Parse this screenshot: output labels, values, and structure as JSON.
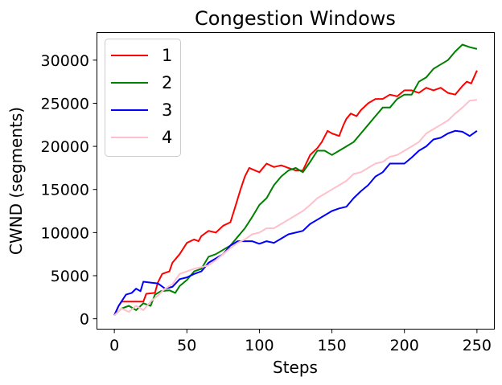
{
  "chart_data": {
    "type": "line",
    "title": "Congestion Windows",
    "xlabel": "Steps",
    "ylabel": "CWND (segments)",
    "xlim": [
      -12,
      262
    ],
    "ylim": [
      -1200,
      33200
    ],
    "xticks": [
      0,
      50,
      100,
      150,
      200,
      250
    ],
    "xtick_labels": [
      "0",
      "50",
      "100",
      "150",
      "200",
      "250"
    ],
    "yticks": [
      0,
      5000,
      10000,
      15000,
      20000,
      25000,
      30000
    ],
    "ytick_labels": [
      "0",
      "5000",
      "10000",
      "15000",
      "20000",
      "25000",
      "30000"
    ],
    "grid": false,
    "legend_position": "top-left",
    "series": [
      {
        "name": "1",
        "color": "#ff0000",
        "points": [
          [
            0,
            400
          ],
          [
            3,
            1500
          ],
          [
            5,
            2000
          ],
          [
            20,
            2000
          ],
          [
            22,
            2900
          ],
          [
            28,
            3000
          ],
          [
            30,
            4200
          ],
          [
            33,
            5200
          ],
          [
            38,
            5500
          ],
          [
            40,
            6500
          ],
          [
            45,
            7500
          ],
          [
            50,
            8800
          ],
          [
            55,
            9200
          ],
          [
            58,
            9000
          ],
          [
            60,
            9600
          ],
          [
            65,
            10200
          ],
          [
            70,
            10000
          ],
          [
            75,
            10800
          ],
          [
            80,
            11200
          ],
          [
            83,
            12800
          ],
          [
            87,
            15000
          ],
          [
            90,
            16500
          ],
          [
            93,
            17500
          ],
          [
            97,
            17200
          ],
          [
            100,
            17000
          ],
          [
            105,
            18000
          ],
          [
            110,
            17600
          ],
          [
            115,
            17800
          ],
          [
            120,
            17500
          ],
          [
            125,
            17200
          ],
          [
            130,
            17200
          ],
          [
            135,
            19000
          ],
          [
            140,
            19800
          ],
          [
            143,
            20500
          ],
          [
            147,
            21800
          ],
          [
            150,
            21500
          ],
          [
            155,
            21200
          ],
          [
            158,
            22500
          ],
          [
            160,
            23200
          ],
          [
            163,
            23800
          ],
          [
            167,
            23500
          ],
          [
            170,
            24200
          ],
          [
            175,
            25000
          ],
          [
            180,
            25500
          ],
          [
            185,
            25500
          ],
          [
            190,
            26000
          ],
          [
            195,
            25800
          ],
          [
            200,
            26500
          ],
          [
            205,
            26500
          ],
          [
            210,
            26200
          ],
          [
            215,
            26800
          ],
          [
            220,
            26500
          ],
          [
            225,
            26800
          ],
          [
            230,
            26200
          ],
          [
            235,
            26000
          ],
          [
            240,
            27000
          ],
          [
            243,
            27500
          ],
          [
            246,
            27300
          ],
          [
            250,
            28800
          ]
        ]
      },
      {
        "name": "2",
        "color": "#008000",
        "points": [
          [
            0,
            400
          ],
          [
            5,
            1200
          ],
          [
            10,
            1500
          ],
          [
            15,
            1000
          ],
          [
            20,
            1800
          ],
          [
            25,
            1500
          ],
          [
            28,
            2800
          ],
          [
            32,
            3200
          ],
          [
            38,
            3300
          ],
          [
            42,
            3000
          ],
          [
            45,
            3800
          ],
          [
            50,
            4500
          ],
          [
            55,
            5500
          ],
          [
            60,
            5800
          ],
          [
            65,
            7200
          ],
          [
            70,
            7500
          ],
          [
            75,
            8000
          ],
          [
            80,
            8500
          ],
          [
            85,
            9500
          ],
          [
            90,
            10500
          ],
          [
            95,
            11800
          ],
          [
            100,
            13200
          ],
          [
            105,
            14000
          ],
          [
            110,
            15500
          ],
          [
            115,
            16500
          ],
          [
            120,
            17200
          ],
          [
            125,
            17500
          ],
          [
            130,
            17000
          ],
          [
            135,
            18200
          ],
          [
            140,
            19500
          ],
          [
            145,
            19500
          ],
          [
            150,
            19000
          ],
          [
            155,
            19500
          ],
          [
            160,
            20000
          ],
          [
            165,
            20500
          ],
          [
            170,
            21500
          ],
          [
            175,
            22500
          ],
          [
            180,
            23500
          ],
          [
            185,
            24500
          ],
          [
            190,
            24500
          ],
          [
            195,
            25500
          ],
          [
            200,
            26000
          ],
          [
            205,
            26000
          ],
          [
            210,
            27500
          ],
          [
            215,
            28000
          ],
          [
            220,
            29000
          ],
          [
            225,
            29500
          ],
          [
            230,
            30000
          ],
          [
            235,
            31000
          ],
          [
            240,
            31800
          ],
          [
            245,
            31500
          ],
          [
            250,
            31300
          ]
        ]
      },
      {
        "name": "3",
        "color": "#0000ff",
        "points": [
          [
            0,
            400
          ],
          [
            3,
            1500
          ],
          [
            8,
            2800
          ],
          [
            12,
            3000
          ],
          [
            15,
            3500
          ],
          [
            18,
            3200
          ],
          [
            20,
            4300
          ],
          [
            25,
            4200
          ],
          [
            30,
            4100
          ],
          [
            35,
            3500
          ],
          [
            40,
            3700
          ],
          [
            45,
            4600
          ],
          [
            50,
            4800
          ],
          [
            55,
            5200
          ],
          [
            60,
            5500
          ],
          [
            65,
            6500
          ],
          [
            70,
            7000
          ],
          [
            75,
            7500
          ],
          [
            80,
            8500
          ],
          [
            85,
            9000
          ],
          [
            90,
            9000
          ],
          [
            95,
            9000
          ],
          [
            100,
            8700
          ],
          [
            105,
            9000
          ],
          [
            110,
            8800
          ],
          [
            115,
            9300
          ],
          [
            120,
            9800
          ],
          [
            125,
            10000
          ],
          [
            130,
            10200
          ],
          [
            135,
            11000
          ],
          [
            140,
            11500
          ],
          [
            145,
            12000
          ],
          [
            150,
            12500
          ],
          [
            155,
            12800
          ],
          [
            160,
            13000
          ],
          [
            165,
            14000
          ],
          [
            170,
            14800
          ],
          [
            175,
            15500
          ],
          [
            180,
            16500
          ],
          [
            185,
            17000
          ],
          [
            190,
            18000
          ],
          [
            195,
            18000
          ],
          [
            200,
            18000
          ],
          [
            205,
            18700
          ],
          [
            210,
            19500
          ],
          [
            215,
            20000
          ],
          [
            220,
            20800
          ],
          [
            225,
            21000
          ],
          [
            230,
            21500
          ],
          [
            235,
            21800
          ],
          [
            240,
            21700
          ],
          [
            245,
            21200
          ],
          [
            250,
            21800
          ]
        ]
      },
      {
        "name": "4",
        "color": "#ffc0cb",
        "points": [
          [
            0,
            400
          ],
          [
            5,
            1200
          ],
          [
            10,
            800
          ],
          [
            15,
            1500
          ],
          [
            20,
            1000
          ],
          [
            25,
            2000
          ],
          [
            30,
            2700
          ],
          [
            35,
            3500
          ],
          [
            40,
            4000
          ],
          [
            45,
            5200
          ],
          [
            50,
            5500
          ],
          [
            55,
            5800
          ],
          [
            60,
            6000
          ],
          [
            65,
            6200
          ],
          [
            70,
            6800
          ],
          [
            75,
            7500
          ],
          [
            80,
            8200
          ],
          [
            85,
            8800
          ],
          [
            90,
            9200
          ],
          [
            95,
            9800
          ],
          [
            100,
            10000
          ],
          [
            105,
            10500
          ],
          [
            110,
            10500
          ],
          [
            115,
            11000
          ],
          [
            120,
            11500
          ],
          [
            125,
            12000
          ],
          [
            130,
            12500
          ],
          [
            135,
            13200
          ],
          [
            140,
            14000
          ],
          [
            145,
            14500
          ],
          [
            150,
            15000
          ],
          [
            155,
            15500
          ],
          [
            160,
            16000
          ],
          [
            165,
            16800
          ],
          [
            170,
            17000
          ],
          [
            175,
            17500
          ],
          [
            180,
            18000
          ],
          [
            185,
            18200
          ],
          [
            190,
            18800
          ],
          [
            195,
            19000
          ],
          [
            200,
            19500
          ],
          [
            205,
            20000
          ],
          [
            210,
            20500
          ],
          [
            215,
            21500
          ],
          [
            220,
            22000
          ],
          [
            225,
            22500
          ],
          [
            230,
            23000
          ],
          [
            235,
            23800
          ],
          [
            240,
            24500
          ],
          [
            245,
            25300
          ],
          [
            250,
            25400
          ]
        ]
      }
    ]
  }
}
